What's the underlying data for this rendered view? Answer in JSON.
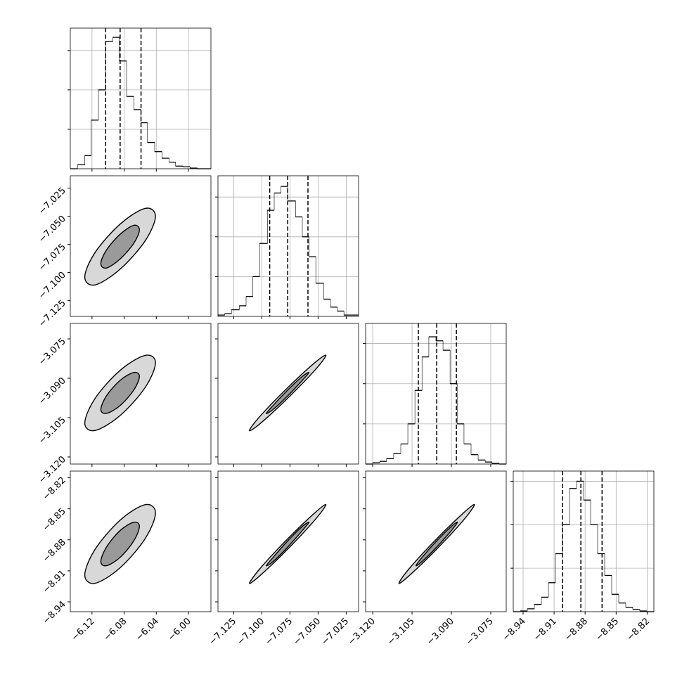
{
  "chart_data": {
    "type": "corner",
    "color": "#000000",
    "contour_fills": [
      "#d8d8d8",
      "#9a9a9a"
    ],
    "grid": true,
    "parameters": [
      {
        "lim": [
          -6.147,
          -5.972
        ],
        "ticks": [
          {
            "value": -6.12,
            "label": "−6.12"
          },
          {
            "value": -6.08,
            "label": "−6.08"
          },
          {
            "value": -6.04,
            "label": "−6.04"
          },
          {
            "value": -6.0,
            "label": "−6.00"
          }
        ],
        "bins": [
          -6.147,
          -6.138,
          -6.129,
          -6.121,
          -6.112,
          -6.103,
          -6.094,
          -6.086,
          -6.077,
          -6.068,
          -6.059,
          -6.051,
          -6.042,
          -6.033,
          -6.024,
          -6.016,
          -6.007,
          -5.998,
          -5.989,
          -5.981,
          -5.972
        ],
        "counts": [
          0,
          30,
          100,
          370,
          600,
          970,
          1000,
          820,
          550,
          450,
          350,
          200,
          130,
          80,
          50,
          20,
          15,
          5,
          0,
          0
        ],
        "count_lim": [
          0,
          1070
        ],
        "count_ticks": [
          300,
          600,
          900
        ],
        "quantiles": [
          -6.103,
          -6.085,
          -6.059
        ]
      },
      {
        "lim": [
          -7.139,
          -7.014
        ],
        "ticks": [
          {
            "value": -7.125,
            "label": "−7.125"
          },
          {
            "value": -7.1,
            "label": "−7.100"
          },
          {
            "value": -7.075,
            "label": "−7.075"
          },
          {
            "value": -7.05,
            "label": "−7.050"
          },
          {
            "value": -7.025,
            "label": "−7.025"
          }
        ],
        "bins": [
          -7.139,
          -7.133,
          -7.127,
          -7.12,
          -7.114,
          -7.108,
          -7.102,
          -7.095,
          -7.089,
          -7.083,
          -7.077,
          -7.07,
          -7.064,
          -7.058,
          -7.052,
          -7.045,
          -7.039,
          -7.033,
          -7.027,
          -7.02,
          -7.014
        ],
        "counts": [
          10,
          20,
          50,
          80,
          150,
          300,
          550,
          800,
          930,
          980,
          870,
          750,
          600,
          450,
          250,
          130,
          70,
          40,
          10,
          10
        ],
        "count_lim": [
          0,
          1060
        ],
        "count_ticks": [
          300,
          600,
          900
        ],
        "quantiles": [
          -7.093,
          -7.077,
          -7.059
        ]
      },
      {
        "lim": [
          -3.1227,
          -3.0691
        ],
        "ticks": [
          {
            "value": -3.12,
            "label": "−3.120"
          },
          {
            "value": -3.105,
            "label": "−3.105"
          },
          {
            "value": -3.09,
            "label": "−3.090"
          },
          {
            "value": -3.075,
            "label": "−3.075"
          }
        ],
        "bins": [
          -3.1227,
          -3.12,
          -3.1173,
          -3.1147,
          -3.112,
          -3.1093,
          -3.1066,
          -3.1039,
          -3.1012,
          -3.0986,
          -3.0959,
          -3.0932,
          -3.0905,
          -3.0878,
          -3.0852,
          -3.0825,
          -3.0798,
          -3.0771,
          -3.0745,
          -3.0718,
          -3.0691
        ],
        "counts": [
          0,
          10,
          20,
          40,
          80,
          150,
          300,
          550,
          800,
          950,
          920,
          850,
          600,
          300,
          150,
          70,
          30,
          15,
          5,
          0
        ],
        "count_lim": [
          0,
          1050
        ],
        "count_ticks": [
          300,
          600,
          900
        ],
        "quantiles": [
          -3.1026,
          -3.0956,
          -3.0881
        ]
      },
      {
        "lim": [
          -8.9495,
          -8.8135
        ],
        "ticks": [
          {
            "value": -8.94,
            "label": "−8.94"
          },
          {
            "value": -8.91,
            "label": "−8.91"
          },
          {
            "value": -8.88,
            "label": "−8.88"
          },
          {
            "value": -8.85,
            "label": "−8.85"
          },
          {
            "value": -8.82,
            "label": "−8.82"
          }
        ],
        "bins": [
          -8.9495,
          -8.9427,
          -8.9359,
          -8.9291,
          -8.9223,
          -8.9155,
          -8.9087,
          -8.9019,
          -8.8951,
          -8.8883,
          -8.8815,
          -8.8747,
          -8.8679,
          -8.8611,
          -8.8543,
          -8.8475,
          -8.8407,
          -8.8339,
          -8.8271,
          -8.8203,
          -8.8135
        ],
        "counts": [
          0,
          5,
          20,
          50,
          100,
          200,
          400,
          600,
          850,
          900,
          770,
          600,
          400,
          250,
          120,
          60,
          30,
          15,
          5,
          0
        ],
        "count_lim": [
          0,
          970
        ],
        "count_ticks": [
          300,
          600,
          900
        ],
        "quantiles": [
          -8.9018,
          -8.8841,
          -8.8636
        ]
      }
    ],
    "pairs": [
      {
        "x": 0,
        "y": 1,
        "contours": [
          [
            [
              -6.041,
              -7.05
            ],
            [
              -6.054,
              -7.043
            ],
            [
              -6.085,
              -7.057
            ],
            [
              -6.116,
              -7.082
            ],
            [
              -6.129,
              -7.104
            ],
            [
              -6.116,
              -7.111
            ],
            [
              -6.085,
              -7.097
            ],
            [
              -6.054,
              -7.072
            ]
          ],
          [
            [
              -6.061,
              -7.062
            ],
            [
              -6.068,
              -7.058
            ],
            [
              -6.085,
              -7.066
            ],
            [
              -6.102,
              -7.08
            ],
            [
              -6.109,
              -7.092
            ],
            [
              -6.102,
              -7.096
            ],
            [
              -6.085,
              -7.088
            ],
            [
              -6.068,
              -7.074
            ]
          ]
        ]
      },
      {
        "x": 0,
        "y": 2,
        "contours": [
          [
            [
              -6.041,
              -3.0841
            ],
            [
              -6.054,
              -3.0813
            ],
            [
              -6.085,
              -3.087
            ],
            [
              -6.116,
              -3.0976
            ],
            [
              -6.129,
              -3.1071
            ],
            [
              -6.116,
              -3.1099
            ],
            [
              -6.085,
              -3.1042
            ],
            [
              -6.054,
              -3.0936
            ]
          ],
          [
            [
              -6.061,
              -3.0893
            ],
            [
              -6.068,
              -3.0878
            ],
            [
              -6.085,
              -3.0908
            ],
            [
              -6.102,
              -3.0967
            ],
            [
              -6.109,
              -3.1019
            ],
            [
              -6.102,
              -3.1034
            ],
            [
              -6.085,
              -3.1004
            ],
            [
              -6.068,
              -3.0945
            ]
          ]
        ]
      },
      {
        "x": 0,
        "y": 3,
        "contours": [
          [
            [
              -6.041,
              -8.854
            ],
            [
              -6.054,
              -8.846
            ],
            [
              -6.085,
              -8.861
            ],
            [
              -6.116,
              -8.889
            ],
            [
              -6.129,
              -8.914
            ],
            [
              -6.116,
              -8.922
            ],
            [
              -6.085,
              -8.907
            ],
            [
              -6.054,
              -8.879
            ]
          ],
          [
            [
              -6.061,
              -8.867
            ],
            [
              -6.068,
              -8.863
            ],
            [
              -6.085,
              -8.871
            ],
            [
              -6.102,
              -8.887
            ],
            [
              -6.109,
              -8.901
            ],
            [
              -6.102,
              -8.905
            ],
            [
              -6.085,
              -8.897
            ],
            [
              -6.068,
              -8.881
            ]
          ]
        ]
      },
      {
        "x": 1,
        "y": 2,
        "contours": [
          [
            [
              -7.043,
              -3.0813
            ],
            [
              -7.053,
              -3.0841
            ],
            [
              -7.077,
              -3.0936
            ],
            [
              -7.101,
              -3.1042
            ],
            [
              -7.111,
              -3.1099
            ],
            [
              -7.101,
              -3.1071
            ],
            [
              -7.077,
              -3.0976
            ],
            [
              -7.053,
              -3.087
            ]
          ],
          [
            [
              -7.058,
              -3.0878
            ],
            [
              -7.064,
              -3.0893
            ],
            [
              -7.077,
              -3.0945
            ],
            [
              -7.09,
              -3.1004
            ],
            [
              -7.096,
              -3.1034
            ],
            [
              -7.09,
              -3.1019
            ],
            [
              -7.077,
              -3.0967
            ],
            [
              -7.064,
              -3.0908
            ]
          ]
        ]
      },
      {
        "x": 1,
        "y": 3,
        "contours": [
          [
            [
              -7.043,
              -8.846
            ],
            [
              -7.053,
              -8.854
            ],
            [
              -7.077,
              -8.879
            ],
            [
              -7.101,
              -8.907
            ],
            [
              -7.111,
              -8.922
            ],
            [
              -7.101,
              -8.914
            ],
            [
              -7.077,
              -8.889
            ],
            [
              -7.053,
              -8.861
            ]
          ],
          [
            [
              -7.058,
              -8.863
            ],
            [
              -7.064,
              -8.867
            ],
            [
              -7.077,
              -8.881
            ],
            [
              -7.09,
              -8.897
            ],
            [
              -7.096,
              -8.905
            ],
            [
              -7.09,
              -8.901
            ],
            [
              -7.077,
              -8.887
            ],
            [
              -7.064,
              -8.871
            ]
          ]
        ]
      },
      {
        "x": 2,
        "y": 3,
        "contours": [
          [
            [
              -3.0812,
              -8.846
            ],
            [
              -3.0854,
              -8.854
            ],
            [
              -3.0956,
              -8.879
            ],
            [
              -3.1058,
              -8.907
            ],
            [
              -3.11,
              -8.922
            ],
            [
              -3.1058,
              -8.914
            ],
            [
              -3.0956,
              -8.889
            ],
            [
              -3.0854,
              -8.861
            ]
          ],
          [
            [
              -3.0877,
              -8.863
            ],
            [
              -3.09,
              -8.867
            ],
            [
              -3.0956,
              -8.881
            ],
            [
              -3.1012,
              -8.897
            ],
            [
              -3.1035,
              -8.905
            ],
            [
              -3.1012,
              -8.901
            ],
            [
              -3.0956,
              -8.887
            ],
            [
              -3.09,
              -8.871
            ]
          ]
        ]
      }
    ]
  }
}
